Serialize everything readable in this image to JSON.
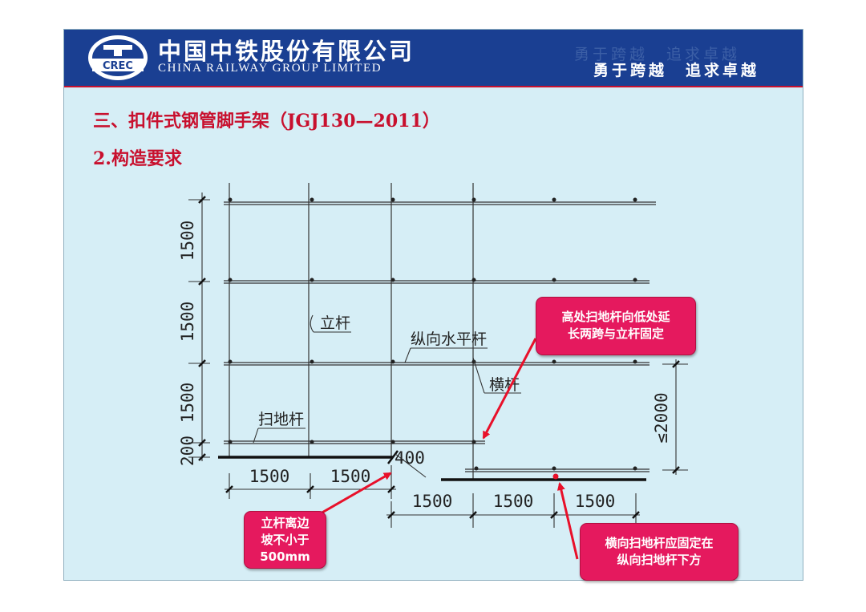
{
  "header": {
    "company_cn": "中国中铁股份有限公司",
    "company_en": "CHINA RAILWAY GROUP LIMITED",
    "logo_text": "CREC",
    "slogan_ghost": "勇于跨越　追求卓越",
    "slogan": "勇于跨越　追求卓越"
  },
  "title": "三、扣件式钢管脚手架（JGJ130—2011）",
  "subtitle": "2.构造要求",
  "diagram": {
    "labels": {
      "li_gan": "立杆",
      "zong_xiang": "纵向水平杆",
      "heng_gan": "横杆",
      "sao_di_gan": "扫地杆"
    },
    "vertical_dims": [
      "1500",
      "1500",
      "1500",
      "200"
    ],
    "horizontal_dims_upper": [
      "1500",
      "1500"
    ],
    "horizontal_dims_lower": [
      "1500",
      "1500",
      "1500"
    ],
    "offset_dim": "400",
    "height_dim": "≤2000"
  },
  "callouts": {
    "top_right": [
      "高处扫地杆向低处延",
      "长两跨与立杆固定"
    ],
    "bottom_left": [
      "立杆离边",
      "坡不小于",
      "500mm"
    ],
    "bottom_right": [
      "横向扫地杆应固定在",
      "纵向扫地杆下方"
    ]
  },
  "colors": {
    "header_bg": "#1a3f92",
    "slide_bg": "#d6eef6",
    "title_red": "#c8102e",
    "callout_pink": "#e5195e",
    "arrow_red": "#e8102a"
  }
}
